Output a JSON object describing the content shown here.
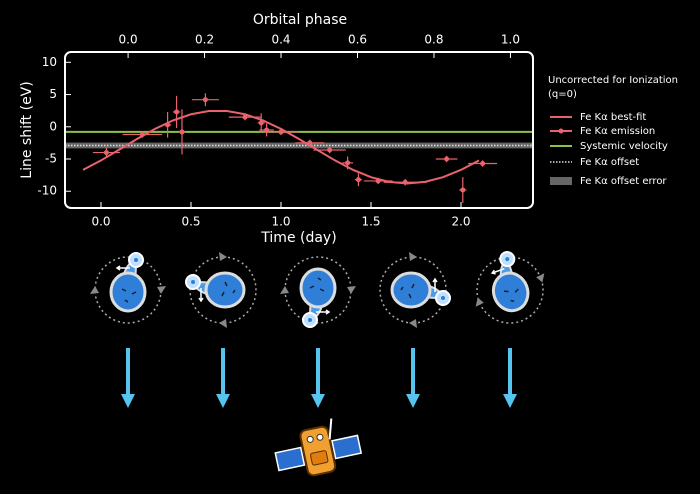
{
  "chart_data": {
    "type": "line",
    "xlabel": "Time (day)",
    "ylabel": "Line shift (eV)",
    "x2label": "Orbital phase",
    "legend_title": [
      "Uncorrected for Ionization",
      "(q=0)"
    ],
    "xlim": [
      -0.2,
      2.4
    ],
    "ylim": [
      -12.6,
      11.6
    ],
    "x2lim": [
      -0.165,
      1.059
    ],
    "xticks": [
      {
        "value": 0,
        "label": "0.0"
      },
      0.5,
      {
        "value": 1,
        "label": "1.0"
      },
      1.5,
      {
        "value": 2,
        "label": "2.0"
      }
    ],
    "x2ticks": [
      {
        "value": 0,
        "label": "0.0"
      },
      0.2,
      0.4,
      0.6,
      0.8,
      {
        "value": 1,
        "label": "1.0"
      }
    ],
    "yticks": [
      10,
      5,
      0,
      -5,
      -10
    ],
    "series": [
      {
        "name": "Fe Kα best-fit",
        "color": "#e8636b",
        "x": [
          -0.1,
          0.0,
          0.1,
          0.2,
          0.3,
          0.4,
          0.5,
          0.6,
          0.7,
          0.8,
          0.9,
          1.0,
          1.1,
          1.2,
          1.3,
          1.4,
          1.5,
          1.6,
          1.7,
          1.8,
          1.9,
          2.0,
          2.1
        ],
        "values": [
          -6.68,
          -5.22,
          -3.57,
          -1.89,
          -0.33,
          0.99,
          1.94,
          2.44,
          2.44,
          1.94,
          0.99,
          -0.33,
          -1.89,
          -3.57,
          -5.22,
          -6.68,
          -7.82,
          -8.55,
          -8.8,
          -8.55,
          -7.82,
          -6.68,
          -5.22
        ]
      },
      {
        "name": "Fe Kα emission",
        "color": "#e8636b",
        "x": [
          0.03,
          0.23,
          0.37,
          0.42,
          0.45,
          0.58,
          0.8,
          0.89,
          0.92,
          1.0,
          1.16,
          1.27,
          1.37,
          1.43,
          1.54,
          1.69,
          1.92,
          2.01,
          2.12
        ],
        "values": [
          -4.0,
          -1.2,
          0.3,
          2.3,
          -0.8,
          4.2,
          1.5,
          0.6,
          -0.5,
          -0.8,
          -2.5,
          -3.6,
          -5.6,
          -8.2,
          -8.4,
          -8.6,
          -5.0,
          -9.8,
          -5.7
        ],
        "xerr": [
          0.075,
          0.11,
          0.02,
          0.02,
          0.02,
          0.075,
          0.09,
          0.02,
          0.04,
          0.1,
          0.08,
          0.09,
          0.03,
          0.02,
          0.08,
          0.12,
          0.06,
          0.02,
          0.08
        ],
        "yerr": [
          0.8,
          0.5,
          2.0,
          2.5,
          3.5,
          1.0,
          0.5,
          1.5,
          1.0,
          0.5,
          0.5,
          0.5,
          1.0,
          1.0,
          0.5,
          0.5,
          0.5,
          2.0,
          0.5
        ]
      },
      {
        "name": "Systemic velocity",
        "color": "#8bc34a",
        "y": -0.8
      },
      {
        "name": "Fe Kα offset",
        "color": "#dddddd",
        "y": -2.9
      },
      {
        "name": "Fe Kα offset error",
        "color": "#666666",
        "ylo": -3.35,
        "yhi": -2.45
      }
    ]
  }
}
